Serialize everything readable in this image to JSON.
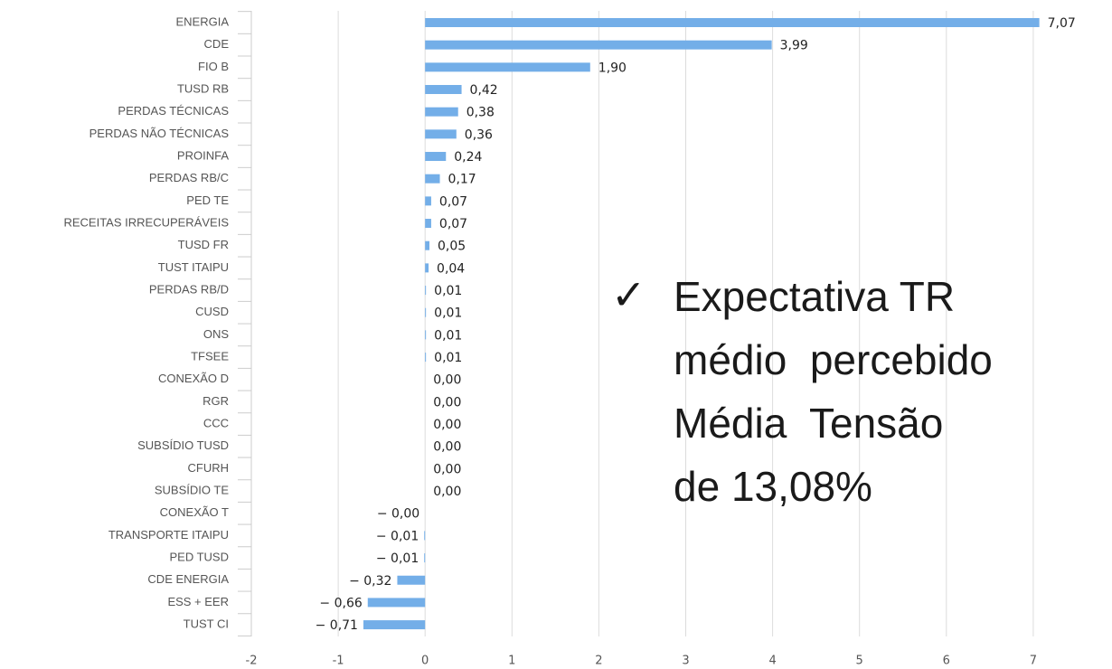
{
  "chart_data": {
    "type": "hbar",
    "categories": [
      "ENERGIA",
      "CDE",
      "FIO B",
      "TUSD RB",
      "PERDAS TÉCNICAS",
      "PERDAS NÃO TÉCNICAS",
      "PROINFA",
      "PERDAS RB/C",
      "PED TE",
      "RECEITAS IRRECUPERÁVEIS",
      "TUSD FR",
      "TUST ITAIPU",
      "PERDAS RB/D",
      "CUSD",
      "ONS",
      "TFSEE",
      "CONEXÃO D",
      "RGR",
      "CCC",
      "SUBSÍDIO TUSD",
      "CFURH",
      "SUBSÍDIO TE",
      "CONEXÃO T",
      "TRANSPORTE ITAIPU",
      "PED TUSD",
      "CDE ENERGIA",
      "ESS + EER",
      "TUST CI"
    ],
    "values": [
      7.07,
      3.99,
      1.9,
      0.42,
      0.38,
      0.36,
      0.24,
      0.17,
      0.07,
      0.07,
      0.05,
      0.04,
      0.01,
      0.01,
      0.01,
      0.01,
      0.0,
      0.0,
      0.0,
      0.0,
      0.0,
      0.0,
      0,
      -0.01,
      -0.01,
      -0.32,
      -0.66,
      -0.71
    ],
    "value_labels": [
      "7,07",
      "3,99",
      "1,90",
      "0,42",
      "0,38",
      "0,36",
      "0,24",
      "0,17",
      "0,07",
      "0,07",
      "0,05",
      "0,04",
      "0,01",
      "0,01",
      "0,01",
      "0,01",
      "0,00",
      "0,00",
      "0,00",
      "0,00",
      "0,00",
      "0,00",
      "− 0,00",
      "− 0,01",
      "− 0,01",
      "− 0,32",
      "− 0,66",
      "− 0,71"
    ],
    "color": "#73aee8",
    "xlim": [
      -2,
      8
    ],
    "xticks": [
      -2,
      -1,
      0,
      1,
      2,
      3,
      4,
      5,
      6,
      7,
      8
    ],
    "grid": true,
    "annotation": {
      "mark": "✓",
      "lines": [
        "Expectativa TR",
        "médio  percebido",
        "Média  Tensão",
        "de 13,08%"
      ]
    }
  }
}
